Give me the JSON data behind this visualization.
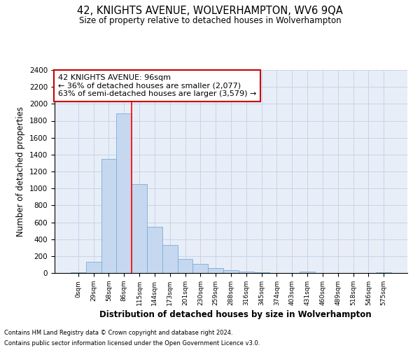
{
  "title": "42, KNIGHTS AVENUE, WOLVERHAMPTON, WV6 9QA",
  "subtitle": "Size of property relative to detached houses in Wolverhampton",
  "xlabel": "Distribution of detached houses by size in Wolverhampton",
  "ylabel": "Number of detached properties",
  "categories": [
    "0sqm",
    "29sqm",
    "58sqm",
    "86sqm",
    "115sqm",
    "144sqm",
    "173sqm",
    "201sqm",
    "230sqm",
    "259sqm",
    "288sqm",
    "316sqm",
    "345sqm",
    "374sqm",
    "403sqm",
    "431sqm",
    "460sqm",
    "489sqm",
    "518sqm",
    "546sqm",
    "575sqm"
  ],
  "values": [
    10,
    130,
    1350,
    1890,
    1050,
    545,
    335,
    165,
    110,
    60,
    30,
    20,
    10,
    0,
    0,
    20,
    0,
    0,
    0,
    0,
    10
  ],
  "bar_color": "#c5d8ef",
  "bar_edge_color": "#7aadd4",
  "grid_color": "#c8d4e8",
  "background_color": "#e8eef8",
  "annotation_text": "42 KNIGHTS AVENUE: 96sqm\n← 36% of detached houses are smaller (2,077)\n63% of semi-detached houses are larger (3,579) →",
  "annotation_box_edge_color": "#cc0000",
  "red_line_x": 3.5,
  "ylim": [
    0,
    2400
  ],
  "yticks": [
    0,
    200,
    400,
    600,
    800,
    1000,
    1200,
    1400,
    1600,
    1800,
    2000,
    2200,
    2400
  ],
  "footnote1": "Contains HM Land Registry data © Crown copyright and database right 2024.",
  "footnote2": "Contains public sector information licensed under the Open Government Licence v3.0."
}
